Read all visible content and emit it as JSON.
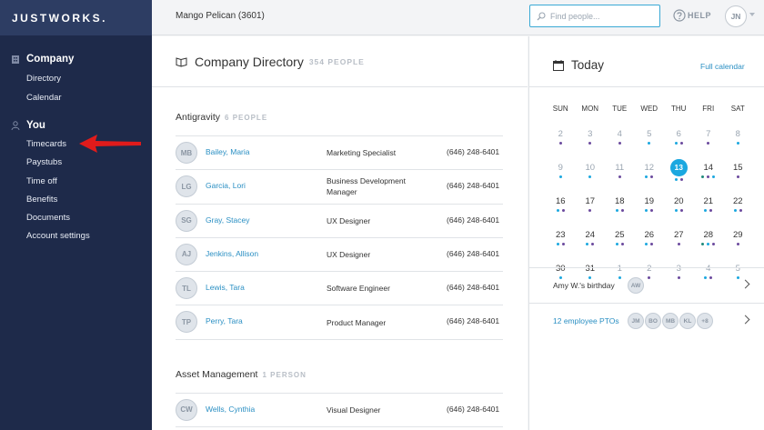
{
  "brand": {
    "logo": "JUSTWORKS."
  },
  "sidebar": {
    "sections": [
      {
        "title": "Company",
        "icon": "building-icon",
        "items": [
          "Directory",
          "Calendar"
        ]
      },
      {
        "title": "You",
        "icon": "person-icon",
        "items": [
          "Timecards",
          "Paystubs",
          "Time off",
          "Benefits",
          "Documents",
          "Account settings"
        ]
      }
    ]
  },
  "topbar": {
    "company": "Mango Pelican (3601)",
    "search_placeholder": "Find people...",
    "help": "HELP",
    "user_initials": "JN"
  },
  "directory": {
    "title": "Company Directory",
    "count": "354 PEOPLE",
    "groups": [
      {
        "name": "Antigravity",
        "count": "6 PEOPLE",
        "people": [
          {
            "initials": "MB",
            "name": "Bailey, Maria",
            "role": "Marketing Specialist",
            "phone": "(646) 248-6401"
          },
          {
            "initials": "LG",
            "name": "Garcia, Lori",
            "role": "Business Development Manager",
            "phone": "(646) 248-6401"
          },
          {
            "initials": "SG",
            "name": "Gray, Stacey",
            "role": "UX Designer",
            "phone": "(646) 248-6401"
          },
          {
            "initials": "AJ",
            "name": "Jenkins, Allison",
            "role": "UX Designer",
            "phone": "(646) 248-6401"
          },
          {
            "initials": "TL",
            "name": "Lewis, Tara",
            "role": "Software Engineer",
            "phone": "(646) 248-6401"
          },
          {
            "initials": "TP",
            "name": "Perry, Tara",
            "role": "Product Manager",
            "phone": "(646) 248-6401"
          }
        ]
      },
      {
        "name": "Asset Management",
        "count": "1 PERSON",
        "people": [
          {
            "initials": "CW",
            "name": "Wells, Cynthia",
            "role": "Visual Designer",
            "phone": "(646) 248-6401"
          }
        ]
      }
    ]
  },
  "calendar": {
    "title": "Today",
    "full_link": "Full calendar",
    "days_of_week": [
      "SUN",
      "MON",
      "TUE",
      "WED",
      "THU",
      "FRI",
      "SAT"
    ],
    "colors": {
      "blue": "#1ba8e0",
      "purple": "#6b4a9e",
      "green": "#1f8a7a",
      "today": "#1ba8e0"
    },
    "weeks": [
      [
        {
          "d": "2",
          "m": true,
          "dots": [
            "purple"
          ]
        },
        {
          "d": "3",
          "m": true,
          "dots": [
            "purple"
          ]
        },
        {
          "d": "4",
          "m": true,
          "dots": [
            "purple"
          ]
        },
        {
          "d": "5",
          "m": true,
          "dots": [
            "blue"
          ]
        },
        {
          "d": "6",
          "m": true,
          "dots": [
            "blue",
            "purple"
          ]
        },
        {
          "d": "7",
          "m": true,
          "dots": [
            "purple"
          ]
        },
        {
          "d": "8",
          "m": true,
          "dots": [
            "blue"
          ]
        }
      ],
      [
        {
          "d": "9",
          "m": true,
          "dots": [
            "blue"
          ]
        },
        {
          "d": "10",
          "m": true,
          "dots": [
            "blue"
          ]
        },
        {
          "d": "11",
          "m": true,
          "dots": [
            "purple"
          ]
        },
        {
          "d": "12",
          "m": true,
          "dots": [
            "blue",
            "purple"
          ]
        },
        {
          "d": "13",
          "today": true,
          "dots": [
            "blue",
            "purple"
          ]
        },
        {
          "d": "14",
          "dots": [
            "green",
            "purple",
            "blue"
          ]
        },
        {
          "d": "15",
          "dots": [
            "purple"
          ]
        }
      ],
      [
        {
          "d": "16",
          "dots": [
            "blue",
            "purple"
          ]
        },
        {
          "d": "17",
          "dots": [
            "purple"
          ]
        },
        {
          "d": "18",
          "dots": [
            "blue",
            "purple"
          ]
        },
        {
          "d": "19",
          "dots": [
            "blue",
            "purple"
          ]
        },
        {
          "d": "20",
          "dots": [
            "blue",
            "purple"
          ]
        },
        {
          "d": "21",
          "dots": [
            "blue",
            "purple"
          ]
        },
        {
          "d": "22",
          "dots": [
            "blue",
            "purple"
          ]
        }
      ],
      [
        {
          "d": "23",
          "dots": [
            "blue",
            "purple"
          ]
        },
        {
          "d": "24",
          "dots": [
            "blue",
            "purple"
          ]
        },
        {
          "d": "25",
          "dots": [
            "blue",
            "purple"
          ]
        },
        {
          "d": "26",
          "dots": [
            "blue",
            "purple"
          ]
        },
        {
          "d": "27",
          "dots": [
            "purple"
          ]
        },
        {
          "d": "28",
          "dots": [
            "green",
            "blue",
            "purple"
          ]
        },
        {
          "d": "29",
          "dots": [
            "purple"
          ]
        }
      ],
      [
        {
          "d": "30",
          "dots": [
            "blue"
          ]
        },
        {
          "d": "31",
          "dots": [
            "blue"
          ]
        },
        {
          "d": "1",
          "m": true,
          "dots": [
            "blue"
          ]
        },
        {
          "d": "2",
          "m": true,
          "dots": [
            "purple"
          ]
        },
        {
          "d": "3",
          "m": true,
          "dots": [
            "purple"
          ]
        },
        {
          "d": "4",
          "m": true,
          "dots": [
            "blue",
            "purple"
          ]
        },
        {
          "d": "5",
          "m": true,
          "dots": [
            "blue"
          ]
        }
      ]
    ],
    "events": [
      {
        "text": "Amy W.'s birthday",
        "chips": [
          "AW"
        ]
      },
      {
        "text": "12 employee PTOs",
        "chips": [
          "JM",
          "BO",
          "MB",
          "KL",
          "+8"
        ]
      }
    ]
  }
}
